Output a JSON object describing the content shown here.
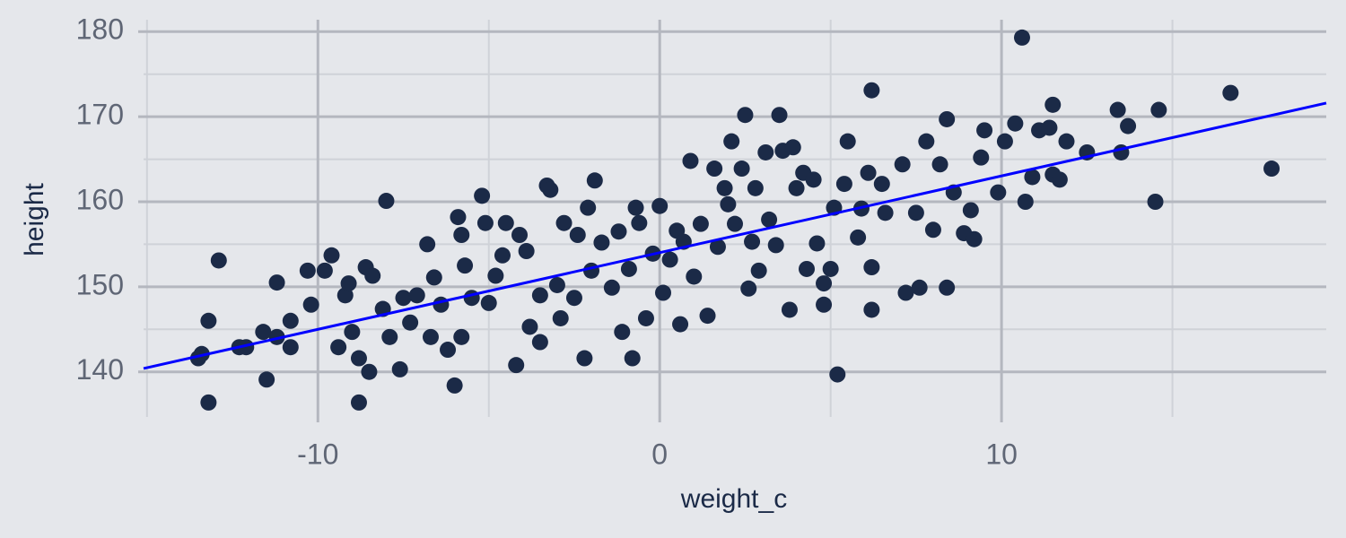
{
  "chart_data": {
    "type": "scatter",
    "x_label": "weight_c",
    "y_label": "height",
    "xlim": [
      -15.1,
      19.5
    ],
    "ylim": [
      134.7,
      181.4
    ],
    "xticks": [
      -10,
      0,
      10
    ],
    "yticks": [
      140,
      150,
      160,
      170,
      180
    ],
    "x_minor_grid": [
      -15,
      -5,
      5,
      15
    ],
    "y_minor_grid": [
      145,
      155,
      165,
      175
    ],
    "grid": true,
    "color": "#1b2a47",
    "x": [
      -13.5,
      -13.4,
      -13.2,
      -13.2,
      -12.9,
      -12.3,
      -12.1,
      -11.6,
      -11.5,
      -11.2,
      -11.2,
      -10.8,
      -10.8,
      -10.3,
      -10.2,
      -9.8,
      -9.6,
      -9.4,
      -9.2,
      -9.1,
      -9.0,
      -8.8,
      -8.8,
      -8.6,
      -8.5,
      -8.4,
      -8.1,
      -8.0,
      -7.9,
      -7.6,
      -7.5,
      -7.3,
      -7.1,
      -6.8,
      -6.7,
      -6.6,
      -6.4,
      -6.2,
      -6.0,
      -5.9,
      -5.8,
      -5.8,
      -5.7,
      -5.5,
      -5.2,
      -5.1,
      -5.0,
      -4.8,
      -4.6,
      -4.5,
      -4.2,
      -4.1,
      -3.9,
      -3.8,
      -3.5,
      -3.5,
      -3.3,
      -3.2,
      -3.0,
      -2.9,
      -2.8,
      -2.5,
      -2.4,
      -2.2,
      -2.1,
      -2.0,
      -1.9,
      -1.7,
      -1.4,
      -1.2,
      -1.1,
      -0.9,
      -0.8,
      -0.7,
      -0.6,
      -0.4,
      -0.2,
      0.0,
      0.1,
      0.3,
      0.5,
      0.6,
      0.7,
      0.9,
      1.0,
      1.2,
      1.4,
      1.6,
      1.7,
      1.9,
      2.0,
      2.1,
      2.2,
      2.4,
      2.5,
      2.6,
      2.7,
      2.8,
      2.9,
      3.1,
      3.2,
      3.4,
      3.5,
      3.6,
      3.8,
      3.9,
      4.0,
      4.2,
      4.3,
      4.5,
      4.6,
      4.8,
      4.8,
      5.0,
      5.1,
      5.2,
      5.4,
      5.5,
      5.8,
      5.9,
      6.1,
      6.2,
      6.2,
      6.2,
      6.5,
      6.6,
      7.1,
      7.2,
      7.5,
      7.6,
      7.8,
      8.0,
      8.2,
      8.4,
      8.4,
      8.6,
      8.9,
      9.1,
      9.2,
      9.4,
      9.5,
      9.9,
      10.1,
      10.4,
      10.6,
      10.7,
      10.9,
      11.1,
      11.4,
      11.5,
      11.5,
      11.7,
      11.9,
      12.5,
      13.4,
      13.5,
      13.7,
      14.5,
      14.6,
      16.7,
      17.9
    ],
    "values": [
      141.6,
      142.1,
      136.4,
      146.0,
      153.1,
      142.9,
      142.9,
      144.7,
      139.1,
      150.5,
      144.1,
      146.0,
      142.9,
      151.9,
      147.9,
      151.9,
      153.7,
      142.9,
      149.0,
      150.4,
      144.7,
      141.6,
      136.4,
      152.3,
      140.0,
      151.3,
      147.4,
      160.1,
      144.1,
      140.3,
      148.7,
      145.8,
      149.0,
      155.0,
      144.1,
      151.1,
      147.9,
      142.6,
      138.4,
      158.2,
      156.1,
      144.1,
      152.5,
      148.7,
      160.7,
      157.5,
      148.1,
      151.3,
      153.7,
      157.5,
      140.8,
      156.1,
      154.2,
      145.3,
      149.0,
      143.5,
      161.9,
      161.4,
      150.2,
      146.3,
      157.5,
      148.7,
      156.1,
      141.6,
      159.3,
      151.9,
      162.5,
      155.2,
      149.9,
      156.5,
      144.7,
      152.1,
      141.6,
      159.3,
      157.5,
      146.3,
      153.9,
      159.5,
      149.3,
      153.2,
      156.6,
      145.6,
      155.3,
      164.8,
      151.2,
      157.4,
      146.6,
      163.9,
      154.7,
      161.6,
      159.7,
      167.1,
      157.4,
      163.9,
      170.2,
      149.8,
      155.3,
      161.6,
      151.9,
      165.8,
      157.9,
      154.9,
      170.2,
      166.0,
      147.3,
      166.4,
      161.6,
      163.4,
      152.1,
      162.6,
      155.1,
      150.4,
      147.9,
      152.1,
      159.3,
      139.7,
      162.1,
      167.1,
      155.8,
      159.2,
      163.4,
      173.1,
      152.3,
      147.3,
      162.1,
      158.7,
      164.4,
      149.3,
      158.7,
      149.9,
      167.1,
      156.7,
      164.4,
      149.9,
      169.7,
      161.1,
      156.3,
      159.0,
      155.6,
      165.2,
      168.4,
      161.1,
      167.1,
      169.2,
      179.3,
      160.0,
      162.9,
      168.4,
      168.7,
      171.4,
      163.2,
      162.6,
      167.1,
      165.8,
      170.8,
      165.8,
      168.9,
      160.0,
      170.8,
      172.8,
      163.9
    ],
    "fit_line": {
      "x": [
        -15.1,
        19.5
      ],
      "values": [
        140.4,
        171.6
      ],
      "color": "#0000ff"
    }
  }
}
